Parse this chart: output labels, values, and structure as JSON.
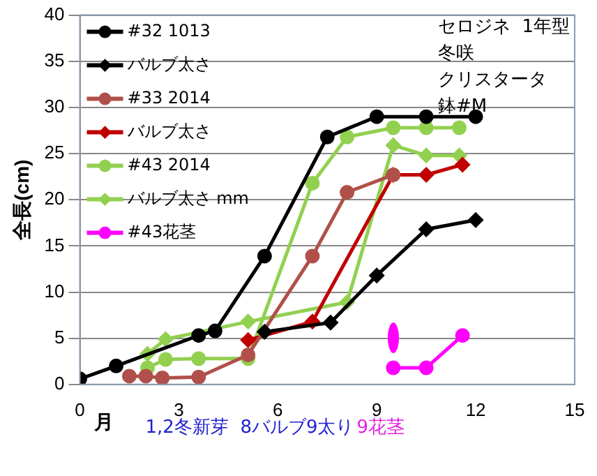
{
  "chart_data": {
    "type": "line",
    "ylabel": "全長(cm)",
    "xlim": [
      0,
      15
    ],
    "xticks": [
      0,
      3,
      6,
      9,
      12,
      15
    ],
    "ylim": [
      0,
      40
    ],
    "yticks": [
      0,
      5,
      10,
      15,
      20,
      25,
      30,
      35,
      40
    ],
    "grid": "y",
    "legend": "top left",
    "annotations": [
      "セロジネ  1年型",
      "冬咲",
      "クリスタータ",
      "鉢#M",
      "月",
      "1,2冬新芽  8バルブ9太り",
      "9花茎"
    ],
    "series": [
      {
        "name": "#32 1013",
        "color": "#000000",
        "marker": "circle",
        "x": [
          0,
          1.1,
          3.6,
          4.1,
          5.6,
          7.5,
          9.0,
          10.5,
          12.0
        ],
        "values": [
          0.6,
          2,
          5.3,
          5.8,
          13.9,
          26.8,
          29,
          29,
          29
        ]
      },
      {
        "name": "バルブ太さ",
        "color": "#000000",
        "marker": "diamond",
        "x": [
          5.6,
          7.6,
          9.0,
          10.5,
          12.0
        ],
        "values": [
          5.7,
          6.7,
          11.8,
          16.8,
          17.8
        ]
      },
      {
        "name": "#33 2014",
        "color": "#b0504a",
        "marker": "circle",
        "x": [
          1.5,
          2.0,
          2.5,
          3.6,
          5.1,
          7.05,
          8.1,
          9.5
        ],
        "values": [
          0.9,
          0.9,
          0.7,
          0.8,
          3.2,
          13.9,
          20.8,
          22.7
        ]
      },
      {
        "name": "バルブ太さ",
        "color": "#c00000",
        "marker": "diamond",
        "x": [
          5.1,
          7.05,
          9.5,
          10.5,
          11.6
        ],
        "values": [
          4.8,
          6.8,
          22.7,
          22.7,
          23.8
        ]
      },
      {
        "name": "#43 2014",
        "color": "#92d050",
        "marker": "circle",
        "x": [
          2.05,
          2.6,
          3.6,
          5.1,
          7.05,
          8.1,
          9.5,
          10.5,
          11.5
        ],
        "values": [
          1.8,
          2.7,
          2.8,
          2.8,
          21.8,
          26.8,
          27.8,
          27.8,
          27.8
        ]
      },
      {
        "name": "バルブ太さ mm",
        "color": "#92d050",
        "marker": "diamond",
        "x": [
          2.05,
          2.6,
          5.1,
          8.1,
          9.5,
          10.5,
          11.5
        ],
        "values": [
          3.3,
          4.9,
          6.8,
          8.9,
          25.9,
          24.8,
          24.8
        ]
      },
      {
        "name": "#43花茎",
        "color": "#ff00ff",
        "marker": "circle",
        "x": [
          9.5,
          10.5,
          11.6
        ],
        "values": [
          1.8,
          1.8,
          5.3
        ]
      }
    ]
  }
}
